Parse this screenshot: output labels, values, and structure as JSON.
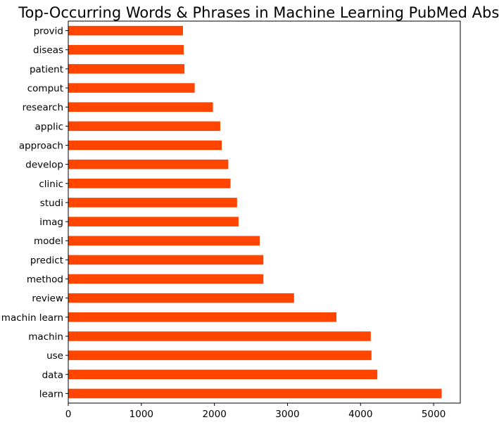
{
  "chart_data": {
    "type": "bar",
    "orientation": "horizontal",
    "title": "Top-Occurring Words & Phrases in Machine Learning PubMed Abstracts",
    "xlabel": "",
    "ylabel": "",
    "categories": [
      "learn",
      "data",
      "use",
      "machin",
      "machin learn",
      "review",
      "method",
      "predict",
      "model",
      "imag",
      "studi",
      "clinic",
      "develop",
      "approach",
      "applic",
      "research",
      "comput",
      "patient",
      "diseas",
      "provid"
    ],
    "values": [
      5110,
      4230,
      4150,
      4140,
      3670,
      3090,
      2670,
      2670,
      2620,
      2330,
      2310,
      2220,
      2190,
      2100,
      2080,
      1980,
      1730,
      1590,
      1580,
      1570
    ],
    "xlim": [
      0,
      5365
    ],
    "xticks": [
      0,
      1000,
      2000,
      3000,
      4000,
      5000
    ],
    "grid": false,
    "legend": "none",
    "bar_color": "#ff4500"
  }
}
